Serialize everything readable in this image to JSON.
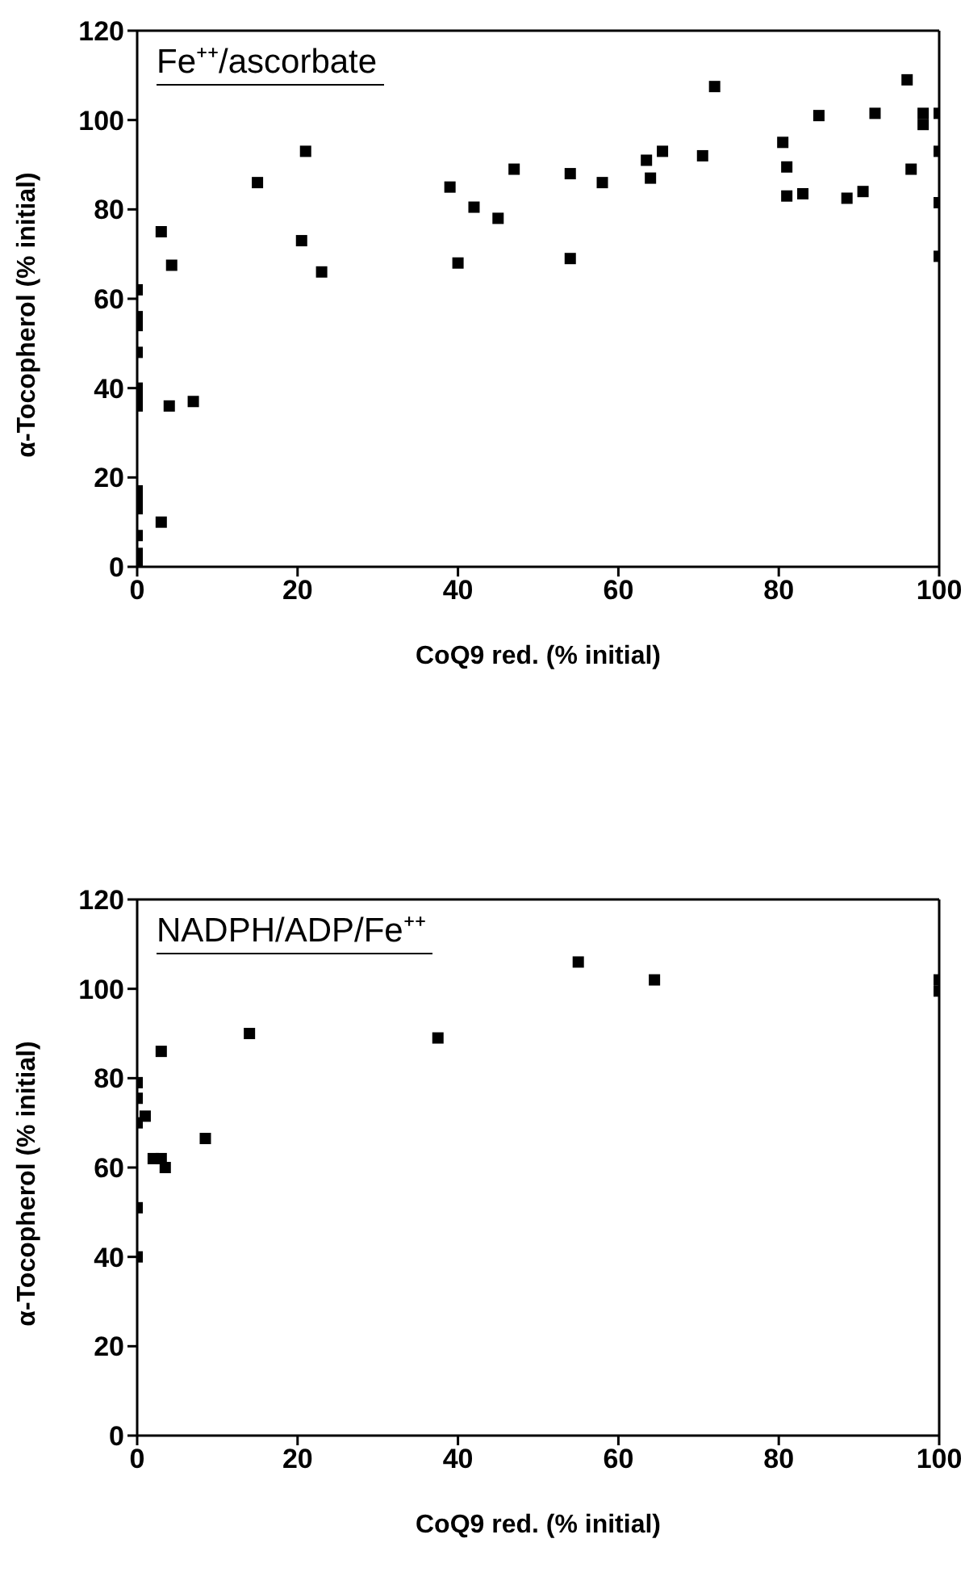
{
  "chart_data": [
    {
      "type": "scatter",
      "title": "Fe⁺⁺/ascorbate",
      "xlabel": "CoQ9 red.  (% initial)",
      "ylabel": "α-Tocopherol  (% initial)",
      "marker": "square",
      "legend": false,
      "xlim": [
        0,
        100
      ],
      "xticks": [
        0,
        20,
        40,
        60,
        80,
        100
      ],
      "ylim": [
        0,
        120
      ],
      "yticks": [
        0,
        20,
        40,
        60,
        80,
        100,
        120
      ],
      "series": [
        {
          "color": "#000000",
          "x": [
            0,
            0,
            0,
            0,
            0,
            0,
            0,
            0,
            0,
            0,
            0,
            0,
            0,
            3,
            4.3,
            4,
            7,
            3,
            15,
            20.5,
            21,
            23,
            39,
            40,
            42,
            45,
            47,
            54,
            54,
            58,
            63.5,
            64,
            65.5,
            70.5,
            72,
            80.5,
            81,
            81,
            83,
            85,
            88.5,
            90.5,
            92,
            96,
            96.5,
            98,
            98,
            100,
            100,
            100,
            100
          ],
          "values": [
            62,
            56,
            54,
            48,
            40,
            38,
            36,
            17,
            15,
            13,
            7,
            3,
            1,
            75,
            67.5,
            36,
            37,
            10,
            86,
            73,
            93,
            66,
            85,
            68,
            80.5,
            78,
            89,
            88,
            69,
            86,
            91,
            87,
            93,
            92,
            107.5,
            95,
            83,
            89.5,
            83.5,
            101,
            82.5,
            84,
            101.5,
            109,
            89,
            101.5,
            99,
            101.5,
            93,
            81.5,
            69.5
          ]
        }
      ]
    },
    {
      "type": "scatter",
      "title": "NADPH/ADP/Fe⁺⁺",
      "xlabel": "CoQ9 red.  (% initial)",
      "ylabel": "α-Tocopherol  (% initial)",
      "marker": "square",
      "legend": false,
      "xlim": [
        0,
        100
      ],
      "xticks": [
        0,
        20,
        40,
        60,
        80,
        100
      ],
      "ylim": [
        0,
        120
      ],
      "yticks": [
        0,
        20,
        40,
        60,
        80,
        100,
        120
      ],
      "series": [
        {
          "color": "#000000",
          "x": [
            0,
            0,
            0,
            0,
            0,
            1,
            2,
            3,
            3.5,
            3,
            8.5,
            14,
            37.5,
            55,
            64.5,
            100,
            100
          ],
          "values": [
            79,
            75.5,
            70,
            51,
            40,
            71.5,
            62,
            62,
            60,
            86,
            66.5,
            90,
            89,
            106,
            102,
            102,
            99.5
          ]
        }
      ]
    }
  ]
}
